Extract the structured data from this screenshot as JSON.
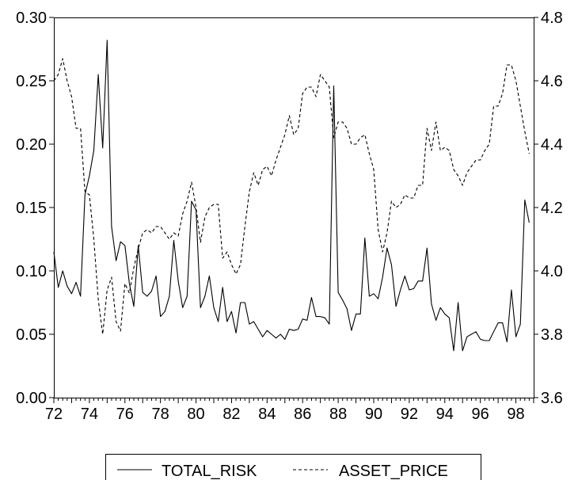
{
  "chart_data": {
    "type": "line",
    "x_tick_labels": [
      "72",
      "74",
      "76",
      "78",
      "80",
      "82",
      "84",
      "86",
      "88",
      "90",
      "92",
      "94",
      "96",
      "98"
    ],
    "x_range": [
      1972,
      1999
    ],
    "y_left": {
      "range": [
        0.0,
        0.3
      ],
      "tick_labels": [
        "0.00",
        "0.05",
        "0.10",
        "0.15",
        "0.20",
        "0.25",
        "0.30"
      ]
    },
    "y_right": {
      "range": [
        3.6,
        4.8
      ],
      "tick_labels": [
        "3.6",
        "3.8",
        "4.0",
        "4.2",
        "4.4",
        "4.6",
        "4.8"
      ]
    },
    "legend_position": "bottom-center",
    "grid": false,
    "series": [
      {
        "name": "TOTAL_RISK",
        "axis": "left",
        "line_style": "solid",
        "x": [
          1972.0,
          1972.25,
          1972.5,
          1972.75,
          1973.0,
          1973.25,
          1973.5,
          1973.75,
          1974.0,
          1974.25,
          1974.5,
          1974.75,
          1975.0,
          1975.25,
          1975.5,
          1975.75,
          1976.0,
          1976.25,
          1976.5,
          1976.75,
          1977.0,
          1977.25,
          1977.5,
          1977.75,
          1978.0,
          1978.25,
          1978.5,
          1978.75,
          1979.0,
          1979.25,
          1979.5,
          1979.75,
          1980.0,
          1980.25,
          1980.5,
          1980.75,
          1981.0,
          1981.25,
          1981.5,
          1981.75,
          1982.0,
          1982.25,
          1982.5,
          1982.75,
          1983.0,
          1983.25,
          1983.5,
          1983.75,
          1984.0,
          1984.25,
          1984.5,
          1984.75,
          1985.0,
          1985.25,
          1985.5,
          1985.75,
          1986.0,
          1986.25,
          1986.5,
          1986.75,
          1987.0,
          1987.25,
          1987.5,
          1987.75,
          1988.0,
          1988.25,
          1988.5,
          1988.75,
          1989.0,
          1989.25,
          1989.5,
          1989.75,
          1990.0,
          1990.25,
          1990.5,
          1990.75,
          1991.0,
          1991.25,
          1991.5,
          1991.75,
          1992.0,
          1992.25,
          1992.5,
          1992.75,
          1993.0,
          1993.25,
          1993.5,
          1993.75,
          1994.0,
          1994.25,
          1994.5,
          1994.75,
          1995.0,
          1995.25,
          1995.5,
          1995.75,
          1996.0,
          1996.25,
          1996.5,
          1996.75,
          1997.0,
          1997.25,
          1997.5,
          1997.75,
          1998.0,
          1998.25,
          1998.5,
          1998.75
        ],
        "values": [
          0.115,
          0.087,
          0.1,
          0.088,
          0.082,
          0.091,
          0.08,
          0.16,
          0.175,
          0.195,
          0.255,
          0.197,
          0.282,
          0.135,
          0.108,
          0.123,
          0.12,
          0.09,
          0.072,
          0.12,
          0.083,
          0.08,
          0.084,
          0.096,
          0.064,
          0.068,
          0.08,
          0.124,
          0.092,
          0.071,
          0.08,
          0.155,
          0.148,
          0.071,
          0.08,
          0.096,
          0.071,
          0.06,
          0.087,
          0.06,
          0.068,
          0.051,
          0.075,
          0.075,
          0.058,
          0.06,
          0.054,
          0.048,
          0.053,
          0.05,
          0.047,
          0.05,
          0.046,
          0.054,
          0.053,
          0.054,
          0.062,
          0.061,
          0.079,
          0.064,
          0.064,
          0.063,
          0.058,
          0.246,
          0.083,
          0.077,
          0.07,
          0.053,
          0.066,
          0.066,
          0.126,
          0.08,
          0.082,
          0.078,
          0.095,
          0.118,
          0.105,
          0.072,
          0.085,
          0.096,
          0.085,
          0.086,
          0.092,
          0.092,
          0.118,
          0.074,
          0.061,
          0.071,
          0.066,
          0.063,
          0.037,
          0.075,
          0.037,
          0.048,
          0.05,
          0.052,
          0.046,
          0.045,
          0.045,
          0.052,
          0.059,
          0.059,
          0.044,
          0.085,
          0.048,
          0.058,
          0.156,
          0.138
        ]
      },
      {
        "name": "ASSET_PRICE",
        "axis": "right",
        "line_style": "dashed",
        "x": [
          1972.0,
          1972.25,
          1972.5,
          1972.75,
          1973.0,
          1973.25,
          1973.5,
          1973.75,
          1974.0,
          1974.25,
          1974.5,
          1974.75,
          1975.0,
          1975.25,
          1975.5,
          1975.75,
          1976.0,
          1976.25,
          1976.5,
          1976.75,
          1977.0,
          1977.25,
          1977.5,
          1977.75,
          1978.0,
          1978.25,
          1978.5,
          1978.75,
          1979.0,
          1979.25,
          1979.5,
          1979.75,
          1980.0,
          1980.25,
          1980.5,
          1980.75,
          1981.0,
          1981.25,
          1981.5,
          1981.75,
          1982.0,
          1982.25,
          1982.5,
          1982.75,
          1983.0,
          1983.25,
          1983.5,
          1983.75,
          1984.0,
          1984.25,
          1984.5,
          1984.75,
          1985.0,
          1985.25,
          1985.5,
          1985.75,
          1986.0,
          1986.25,
          1986.5,
          1986.75,
          1987.0,
          1987.25,
          1987.5,
          1987.75,
          1988.0,
          1988.25,
          1988.5,
          1988.75,
          1989.0,
          1989.25,
          1989.5,
          1989.75,
          1990.0,
          1990.25,
          1990.5,
          1990.75,
          1991.0,
          1991.25,
          1991.5,
          1991.75,
          1992.0,
          1992.25,
          1992.5,
          1992.75,
          1993.0,
          1993.25,
          1993.5,
          1993.75,
          1994.0,
          1994.25,
          1994.5,
          1994.75,
          1995.0,
          1995.25,
          1995.5,
          1995.75,
          1996.0,
          1996.25,
          1996.5,
          1996.75,
          1997.0,
          1997.25,
          1997.5,
          1997.75,
          1998.0,
          1998.25,
          1998.5,
          1998.75
        ],
        "values": [
          4.6,
          4.62,
          4.67,
          4.6,
          4.55,
          4.45,
          4.45,
          4.25,
          4.24,
          4.1,
          3.91,
          3.8,
          3.94,
          3.98,
          3.84,
          3.81,
          3.96,
          3.93,
          4.01,
          4.07,
          4.12,
          4.13,
          4.12,
          4.14,
          4.14,
          4.12,
          4.1,
          4.12,
          4.11,
          4.18,
          4.22,
          4.28,
          4.2,
          4.09,
          4.17,
          4.2,
          4.21,
          4.21,
          4.04,
          4.06,
          4.02,
          3.99,
          4.02,
          4.14,
          4.25,
          4.31,
          4.27,
          4.32,
          4.33,
          4.3,
          4.35,
          4.39,
          4.43,
          4.49,
          4.43,
          4.45,
          4.56,
          4.58,
          4.58,
          4.55,
          4.62,
          4.6,
          4.58,
          4.42,
          4.47,
          4.47,
          4.45,
          4.4,
          4.4,
          4.42,
          4.43,
          4.37,
          4.32,
          4.13,
          4.06,
          4.12,
          4.22,
          4.2,
          4.21,
          4.24,
          4.23,
          4.23,
          4.27,
          4.27,
          4.45,
          4.38,
          4.47,
          4.38,
          4.39,
          4.38,
          4.32,
          4.3,
          4.27,
          4.31,
          4.33,
          4.35,
          4.35,
          4.38,
          4.4,
          4.52,
          4.52,
          4.56,
          4.65,
          4.65,
          4.6,
          4.52,
          4.44,
          4.37
        ]
      }
    ]
  }
}
